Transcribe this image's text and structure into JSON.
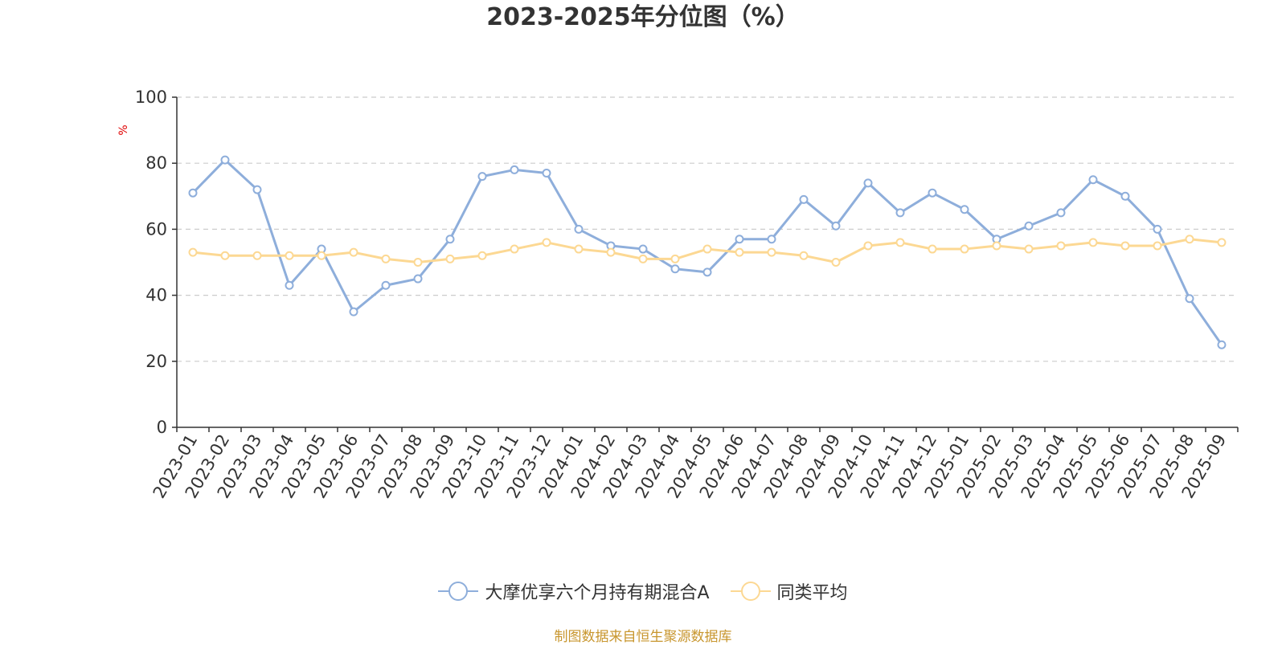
{
  "chart_data": {
    "type": "line",
    "title": "2023-2025年分位图（%）",
    "ylabel": "%",
    "ylim": [
      0,
      100
    ],
    "yticks": [
      0,
      20,
      40,
      60,
      80,
      100
    ],
    "grid": true,
    "legend_position": "bottom",
    "categories": [
      "2023-01",
      "2023-02",
      "2023-03",
      "2023-04",
      "2023-05",
      "2023-06",
      "2023-07",
      "2023-08",
      "2023-09",
      "2023-10",
      "2023-11",
      "2023-12",
      "2024-01",
      "2024-02",
      "2024-03",
      "2024-04",
      "2024-05",
      "2024-06",
      "2024-07",
      "2024-08",
      "2024-09",
      "2024-10",
      "2024-11",
      "2024-12",
      "2025-01",
      "2025-02",
      "2025-03",
      "2025-04",
      "2025-05",
      "2025-06",
      "2025-07",
      "2025-08",
      "2025-09"
    ],
    "series": [
      {
        "name": "大摩优享六个月持有期混合A",
        "color": "#8eaedb",
        "values": [
          71,
          81,
          72,
          43,
          54,
          35,
          43,
          45,
          57,
          76,
          78,
          77,
          60,
          55,
          54,
          48,
          47,
          57,
          57,
          69,
          61,
          74,
          65,
          71,
          66,
          57,
          61,
          65,
          75,
          70,
          60,
          39,
          25
        ]
      },
      {
        "name": "同类平均",
        "color": "#fcd893",
        "values": [
          53,
          52,
          52,
          52,
          52,
          53,
          51,
          50,
          51,
          52,
          54,
          56,
          54,
          53,
          51,
          51,
          54,
          53,
          53,
          52,
          50,
          55,
          56,
          54,
          54,
          55,
          54,
          55,
          56,
          55,
          55,
          57,
          56
        ]
      }
    ]
  },
  "source_note": "制图数据来自恒生聚源数据库"
}
